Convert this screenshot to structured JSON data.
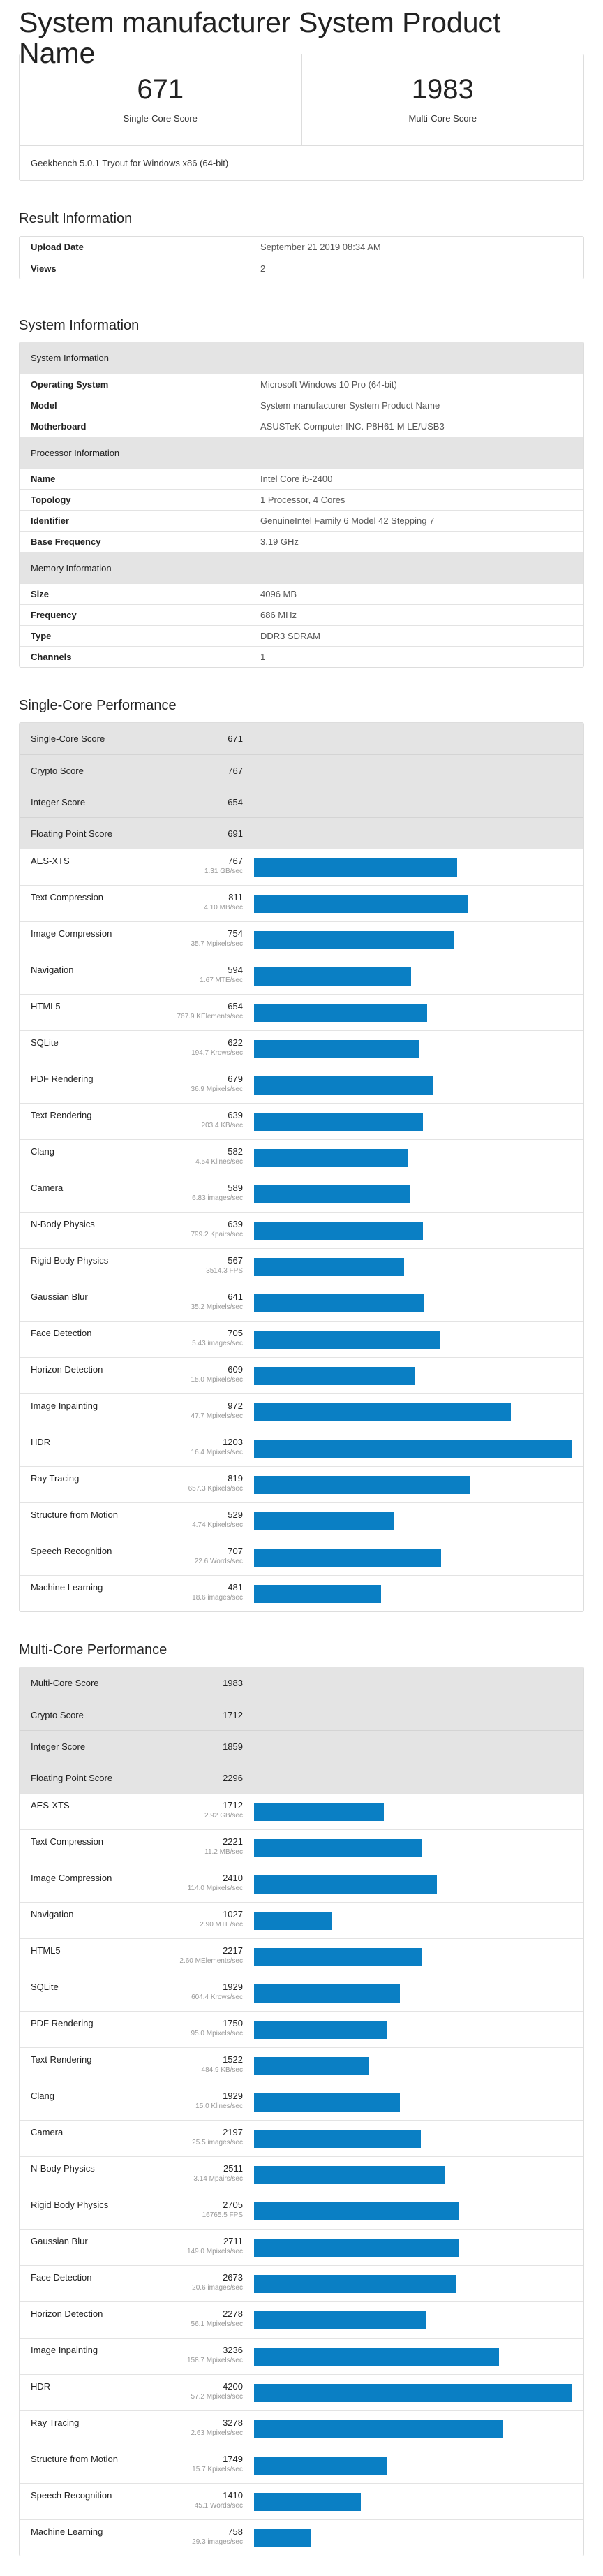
{
  "page_title": "System manufacturer System Product Name",
  "scores": {
    "single_core": "671",
    "single_core_label": "Single-Core Score",
    "multi_core": "1983",
    "multi_core_label": "Multi-Core Score",
    "footer": "Geekbench 5.0.1 Tryout for Windows x86 (64-bit)"
  },
  "result_info": {
    "title": "Result Information",
    "rows": [
      {
        "key": "Upload Date",
        "value": "September 21 2019 08:34 AM"
      },
      {
        "key": "Views",
        "value": "2"
      }
    ]
  },
  "system_info": {
    "title": "System Information",
    "sections": [
      {
        "header": "System Information",
        "rows": [
          {
            "key": "Operating System",
            "value": "Microsoft Windows 10 Pro (64-bit)"
          },
          {
            "key": "Model",
            "value": "System manufacturer System Product Name"
          },
          {
            "key": "Motherboard",
            "value": "ASUSTeK Computer INC. P8H61-M LE/USB3"
          }
        ]
      },
      {
        "header": "Processor Information",
        "rows": [
          {
            "key": "Name",
            "value": "Intel Core i5-2400"
          },
          {
            "key": "Topology",
            "value": "1 Processor, 4 Cores"
          },
          {
            "key": "Identifier",
            "value": "GenuineIntel Family 6 Model 42 Stepping 7"
          },
          {
            "key": "Base Frequency",
            "value": "3.19 GHz"
          }
        ]
      },
      {
        "header": "Memory Information",
        "rows": [
          {
            "key": "Size",
            "value": "4096 MB"
          },
          {
            "key": "Frequency",
            "value": "686 MHz"
          },
          {
            "key": "Type",
            "value": "DDR3 SDRAM"
          },
          {
            "key": "Channels",
            "value": "1"
          }
        ]
      }
    ]
  },
  "single_core": {
    "title": "Single-Core Performance",
    "bar_max": 1203,
    "summary": [
      {
        "name": "Single-Core Score",
        "value": "671"
      },
      {
        "name": "Crypto Score",
        "value": "767"
      },
      {
        "name": "Integer Score",
        "value": "654"
      },
      {
        "name": "Floating Point Score",
        "value": "691"
      }
    ],
    "tests": [
      {
        "name": "AES-XTS",
        "score": 767,
        "desc": "1.31 GB/sec"
      },
      {
        "name": "Text Compression",
        "score": 811,
        "desc": "4.10 MB/sec"
      },
      {
        "name": "Image Compression",
        "score": 754,
        "desc": "35.7 Mpixels/sec"
      },
      {
        "name": "Navigation",
        "score": 594,
        "desc": "1.67 MTE/sec"
      },
      {
        "name": "HTML5",
        "score": 654,
        "desc": "767.9 KElements/sec"
      },
      {
        "name": "SQLite",
        "score": 622,
        "desc": "194.7 Krows/sec"
      },
      {
        "name": "PDF Rendering",
        "score": 679,
        "desc": "36.9 Mpixels/sec"
      },
      {
        "name": "Text Rendering",
        "score": 639,
        "desc": "203.4 KB/sec"
      },
      {
        "name": "Clang",
        "score": 582,
        "desc": "4.54 Klines/sec"
      },
      {
        "name": "Camera",
        "score": 589,
        "desc": "6.83 images/sec"
      },
      {
        "name": "N-Body Physics",
        "score": 639,
        "desc": "799.2 Kpairs/sec"
      },
      {
        "name": "Rigid Body Physics",
        "score": 567,
        "desc": "3514.3 FPS"
      },
      {
        "name": "Gaussian Blur",
        "score": 641,
        "desc": "35.2 Mpixels/sec"
      },
      {
        "name": "Face Detection",
        "score": 705,
        "desc": "5.43 images/sec"
      },
      {
        "name": "Horizon Detection",
        "score": 609,
        "desc": "15.0 Mpixels/sec"
      },
      {
        "name": "Image Inpainting",
        "score": 972,
        "desc": "47.7 Mpixels/sec"
      },
      {
        "name": "HDR",
        "score": 1203,
        "desc": "16.4 Mpixels/sec"
      },
      {
        "name": "Ray Tracing",
        "score": 819,
        "desc": "657.3 Kpixels/sec"
      },
      {
        "name": "Structure from Motion",
        "score": 529,
        "desc": "4.74 Kpixels/sec"
      },
      {
        "name": "Speech Recognition",
        "score": 707,
        "desc": "22.6 Words/sec"
      },
      {
        "name": "Machine Learning",
        "score": 481,
        "desc": "18.6 images/sec"
      }
    ]
  },
  "multi_core": {
    "title": "Multi-Core Performance",
    "bar_max": 4200,
    "summary": [
      {
        "name": "Multi-Core Score",
        "value": "1983"
      },
      {
        "name": "Crypto Score",
        "value": "1712"
      },
      {
        "name": "Integer Score",
        "value": "1859"
      },
      {
        "name": "Floating Point Score",
        "value": "2296"
      }
    ],
    "tests": [
      {
        "name": "AES-XTS",
        "score": 1712,
        "desc": "2.92 GB/sec"
      },
      {
        "name": "Text Compression",
        "score": 2221,
        "desc": "11.2 MB/sec"
      },
      {
        "name": "Image Compression",
        "score": 2410,
        "desc": "114.0 Mpixels/sec"
      },
      {
        "name": "Navigation",
        "score": 1027,
        "desc": "2.90 MTE/sec"
      },
      {
        "name": "HTML5",
        "score": 2217,
        "desc": "2.60 MElements/sec"
      },
      {
        "name": "SQLite",
        "score": 1929,
        "desc": "604.4 Krows/sec"
      },
      {
        "name": "PDF Rendering",
        "score": 1750,
        "desc": "95.0 Mpixels/sec"
      },
      {
        "name": "Text Rendering",
        "score": 1522,
        "desc": "484.9 KB/sec"
      },
      {
        "name": "Clang",
        "score": 1929,
        "desc": "15.0 Klines/sec"
      },
      {
        "name": "Camera",
        "score": 2197,
        "desc": "25.5 images/sec"
      },
      {
        "name": "N-Body Physics",
        "score": 2511,
        "desc": "3.14 Mpairs/sec"
      },
      {
        "name": "Rigid Body Physics",
        "score": 2705,
        "desc": "16765.5 FPS"
      },
      {
        "name": "Gaussian Blur",
        "score": 2711,
        "desc": "149.0 Mpixels/sec"
      },
      {
        "name": "Face Detection",
        "score": 2673,
        "desc": "20.6 images/sec"
      },
      {
        "name": "Horizon Detection",
        "score": 2278,
        "desc": "56.1 Mpixels/sec"
      },
      {
        "name": "Image Inpainting",
        "score": 3236,
        "desc": "158.7 Mpixels/sec"
      },
      {
        "name": "HDR",
        "score": 4200,
        "desc": "57.2 Mpixels/sec"
      },
      {
        "name": "Ray Tracing",
        "score": 3278,
        "desc": "2.63 Mpixels/sec"
      },
      {
        "name": "Structure from Motion",
        "score": 1749,
        "desc": "15.7 Kpixels/sec"
      },
      {
        "name": "Speech Recognition",
        "score": 1410,
        "desc": "45.1 Words/sec"
      },
      {
        "name": "Machine Learning",
        "score": 758,
        "desc": "29.3 images/sec"
      }
    ]
  }
}
